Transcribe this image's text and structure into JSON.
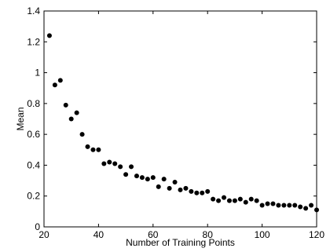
{
  "chart_data": {
    "type": "scatter",
    "title": "",
    "xlabel": "Number of Training Points",
    "ylabel": "Mean",
    "xlim": [
      20,
      120
    ],
    "ylim": [
      0,
      1.4
    ],
    "xticks": [
      "20",
      "40",
      "60",
      "80",
      "100",
      "120"
    ],
    "yticks": [
      "0",
      "0.2",
      "0.4",
      "0.6",
      "0.8",
      "1",
      "1.2",
      "1.4"
    ],
    "grid": false,
    "marker_color": "#000000",
    "series": [
      {
        "x": [
          22,
          24,
          26,
          28,
          30,
          32,
          34,
          36,
          38,
          40,
          42,
          44,
          46,
          48,
          50,
          52,
          54,
          56,
          58,
          60,
          62,
          64,
          66,
          68,
          70,
          72,
          74,
          76,
          78,
          80,
          82,
          84,
          86,
          88,
          90,
          92,
          94,
          96,
          98,
          100,
          102,
          104,
          106,
          108,
          110,
          112,
          114,
          116,
          118,
          120
        ],
        "y": [
          1.24,
          0.92,
          0.95,
          0.79,
          0.7,
          0.74,
          0.6,
          0.52,
          0.5,
          0.5,
          0.41,
          0.42,
          0.41,
          0.39,
          0.34,
          0.39,
          0.33,
          0.32,
          0.31,
          0.32,
          0.26,
          0.31,
          0.25,
          0.29,
          0.24,
          0.25,
          0.23,
          0.22,
          0.22,
          0.23,
          0.18,
          0.17,
          0.19,
          0.17,
          0.17,
          0.18,
          0.16,
          0.18,
          0.17,
          0.14,
          0.15,
          0.15,
          0.14,
          0.14,
          0.14,
          0.14,
          0.13,
          0.12,
          0.14,
          0.11
        ]
      }
    ]
  }
}
